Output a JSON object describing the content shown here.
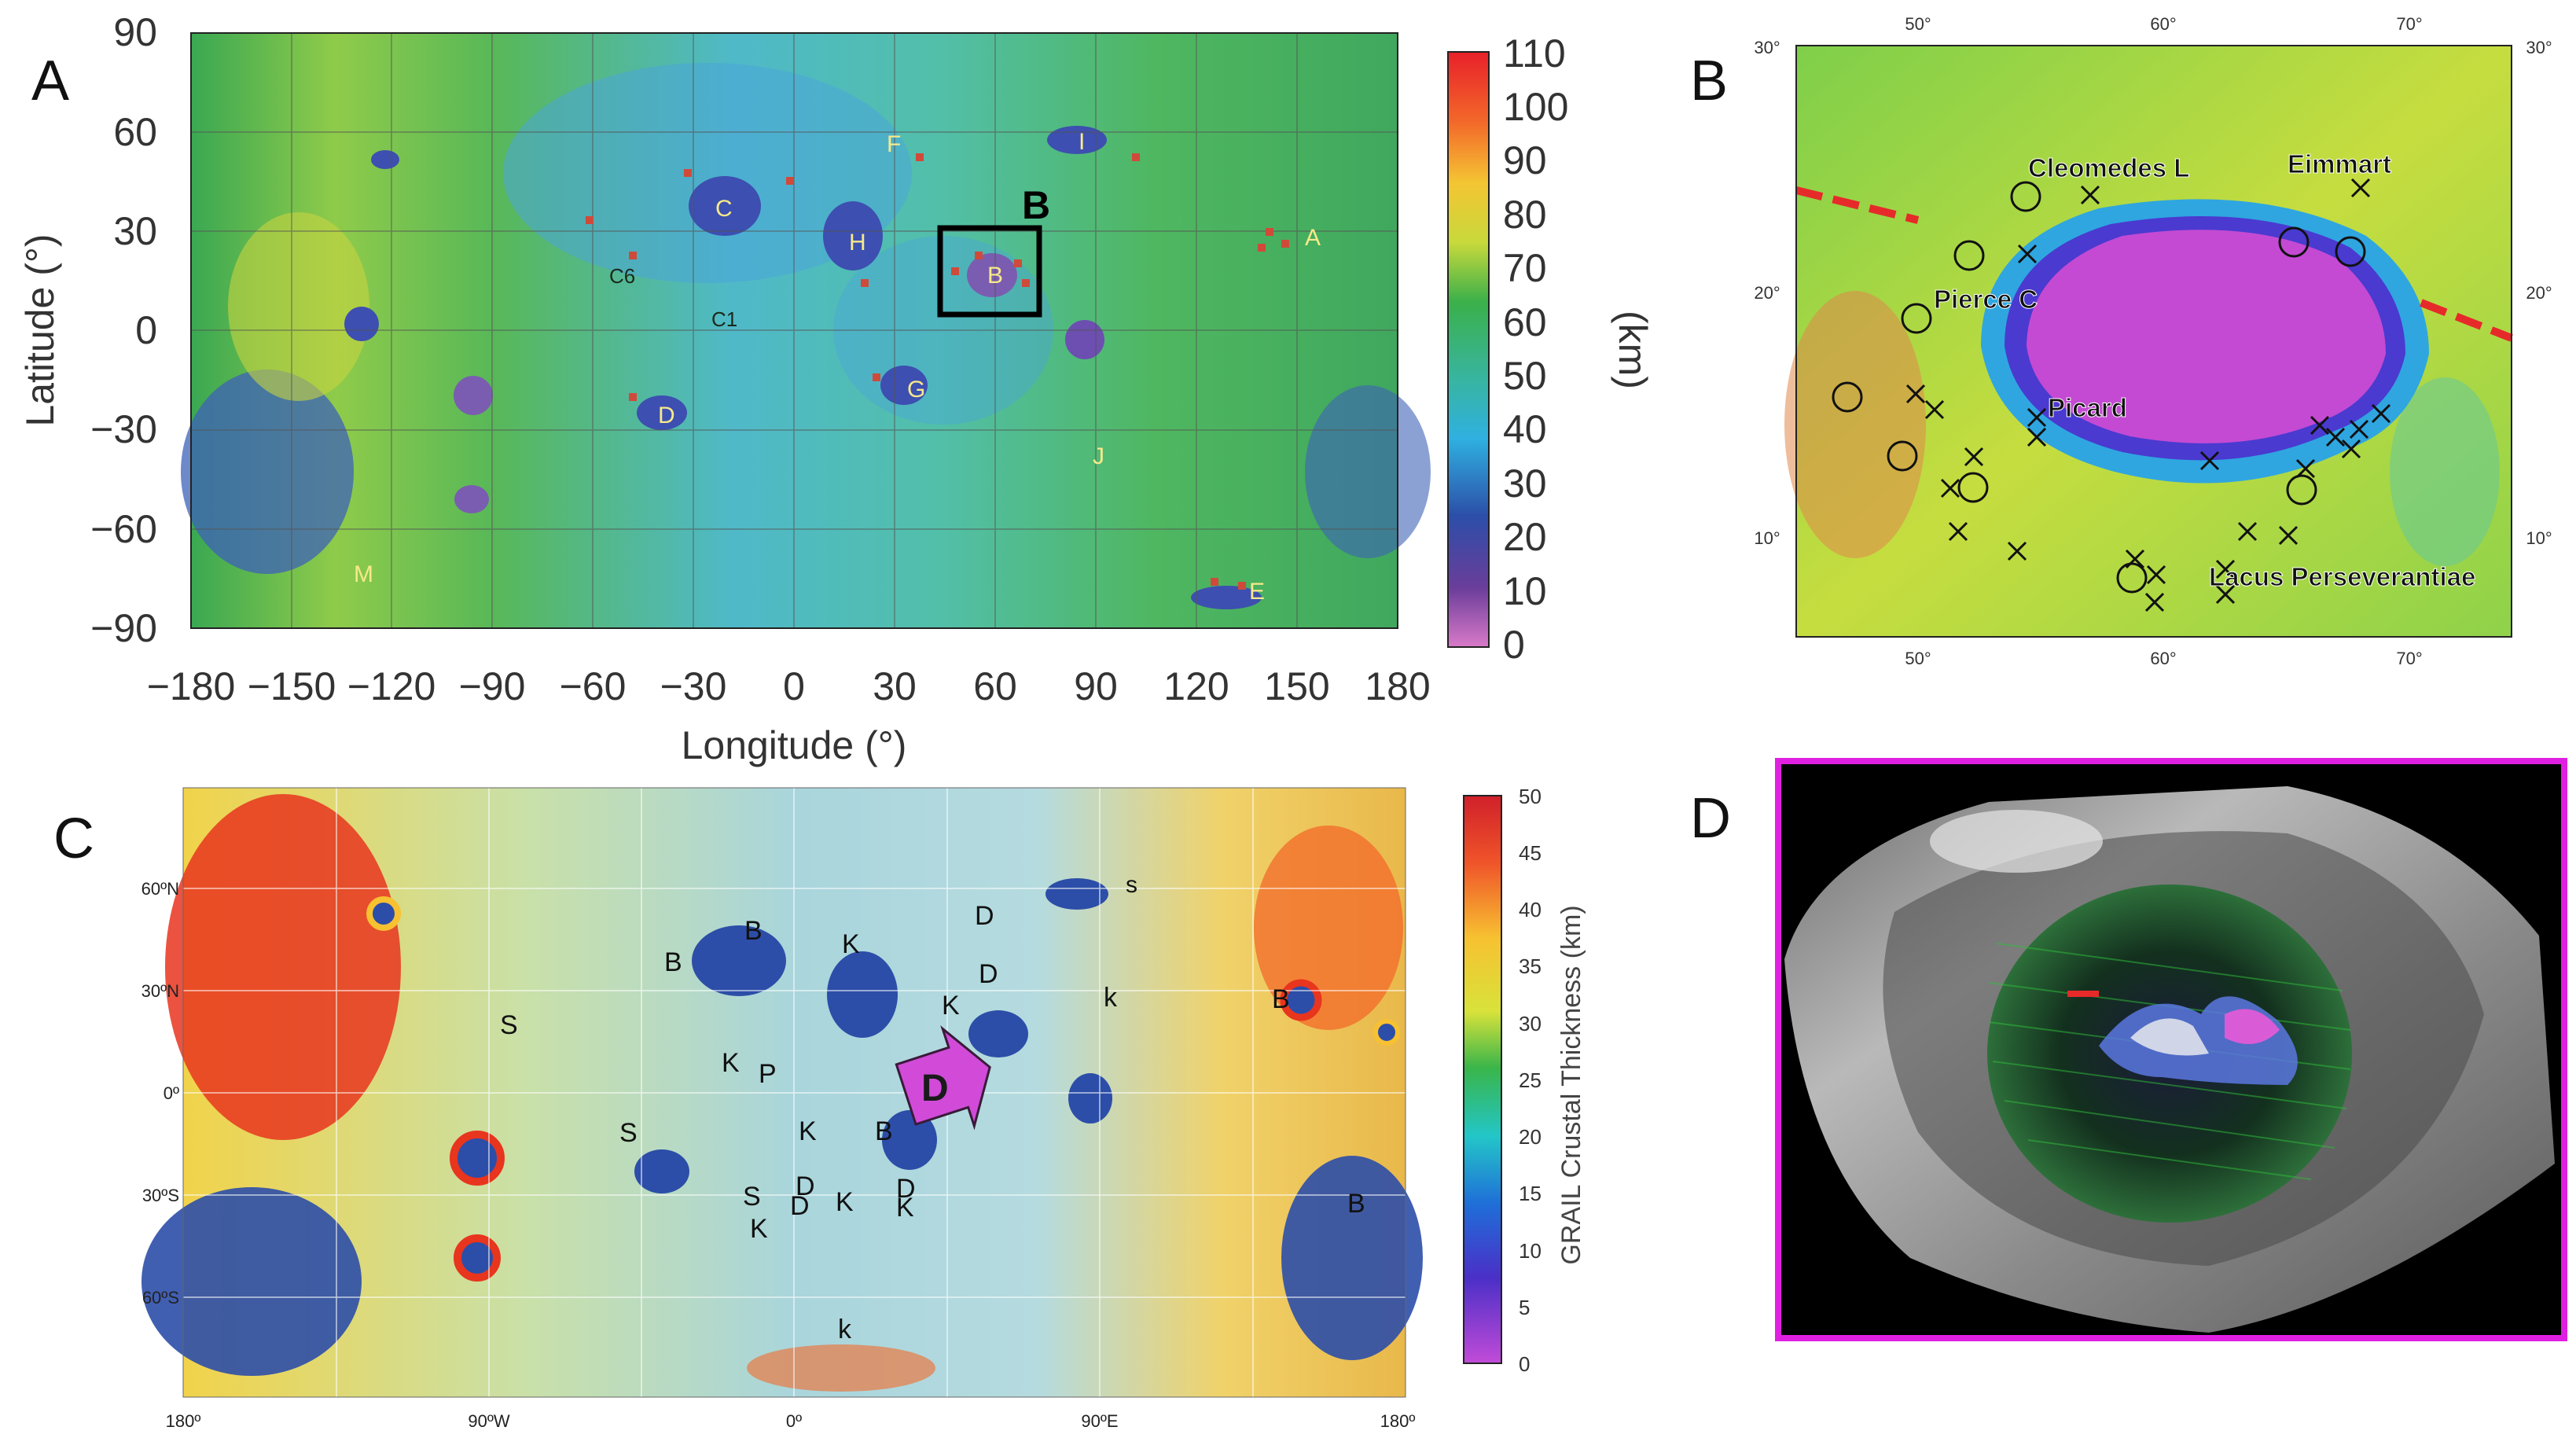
{
  "panels": {
    "a": {
      "letter": "A",
      "xlabel": "Longitude (°)",
      "ylabel": "Latitude (°)",
      "xticks": [
        "−180",
        "−150",
        "−120",
        "−90",
        "−60",
        "−30",
        "0",
        "30",
        "60",
        "90",
        "120",
        "150",
        "180"
      ],
      "yticks": [
        "90",
        "60",
        "30",
        "0",
        "−30",
        "−60",
        "−90"
      ],
      "colorbar_ticks": [
        "110",
        "100",
        "90",
        "80",
        "70",
        "60",
        "50",
        "40",
        "30",
        "20",
        "10",
        "0"
      ],
      "colorbar_unit": "(km)",
      "inset_label": "B",
      "basin_labels": [
        "A",
        "B",
        "C",
        "C1",
        "C6",
        "D",
        "E",
        "F",
        "G",
        "H",
        "I",
        "J",
        "M"
      ]
    },
    "b": {
      "letter": "B",
      "top_ticks": [
        "50°",
        "60°",
        "70°"
      ],
      "bottom_ticks": [
        "50°",
        "60°",
        "70°"
      ],
      "left_ticks": [
        "30°",
        "20°",
        "10°"
      ],
      "right_ticks": [
        "30°",
        "20°",
        "10°"
      ],
      "features": [
        "Cleomedes L",
        "Eimmart",
        "Pierce C",
        "Picard",
        "Lacus Perseverantiae"
      ]
    },
    "c": {
      "letter": "C",
      "colorbar_title": "GRAIL Crustal Thickness (km)",
      "colorbar_ticks": [
        "50",
        "45",
        "40",
        "35",
        "30",
        "25",
        "20",
        "15",
        "10",
        "5",
        "0"
      ],
      "lat_ticks": [
        "60ºN",
        "30ºN",
        "0º",
        "30ºS",
        "60ºS"
      ],
      "lon_ticks": [
        "180º",
        "90ºW",
        "0º",
        "90ºE",
        "180º"
      ],
      "arrow_label": "D",
      "map_letters": [
        "B",
        "B",
        "K",
        "D",
        "D",
        "K",
        "k",
        "s",
        "B",
        "S",
        "K",
        "P",
        "S",
        "K",
        "B",
        "S",
        "D",
        "D",
        "K",
        "D",
        "K",
        "K",
        "B",
        "k"
      ]
    },
    "d": {
      "letter": "D"
    }
  }
}
